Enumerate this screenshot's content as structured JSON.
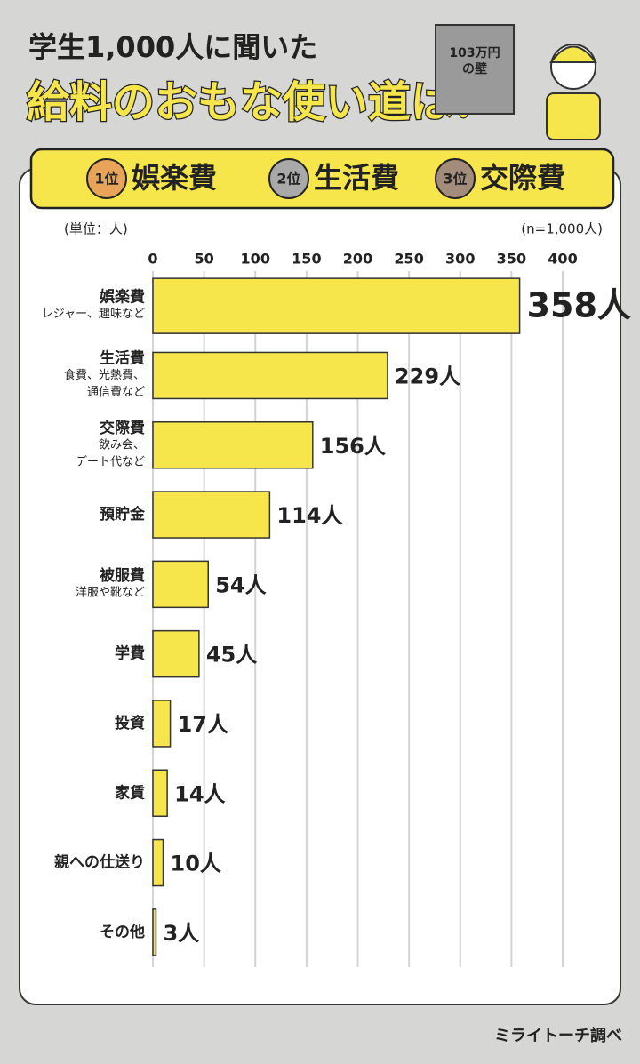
{
  "title": "学生1,000人に聞いた",
  "headline": "給料のおもな使い道は？",
  "book_label": [
    "103万円",
    "の壁"
  ],
  "ranking": [
    {
      "rank": "1位",
      "label": "娯楽費"
    },
    {
      "rank": "2位",
      "label": "生活費"
    },
    {
      "rank": "3位",
      "label": "交際費"
    }
  ],
  "source": "ミライトーチ調べ",
  "chart_data": {
    "type": "bar",
    "orientation": "horizontal",
    "unit_label": "(単位：人)",
    "sample_label": "(n=1,000人)",
    "categories": [
      "娯楽費",
      "生活費",
      "交際費",
      "預貯金",
      "被服費",
      "学費",
      "投資",
      "家賃",
      "親への仕送り",
      "その他"
    ],
    "sublabels": [
      [
        "レジャー、趣味など"
      ],
      [
        "食費、光熱費、",
        "通信費など"
      ],
      [
        "飲み会、",
        "デート代など"
      ],
      null,
      [
        "洋服や靴など"
      ],
      null,
      null,
      null,
      null,
      null
    ],
    "values": [
      358,
      229,
      156,
      114,
      54,
      45,
      17,
      14,
      10,
      3
    ],
    "value_labels": [
      "358人",
      "229人",
      "156人",
      "114人",
      "54人",
      "45人",
      "17人",
      "14人",
      "10人",
      "3人"
    ],
    "color": "#f6e64b",
    "xlim": [
      0,
      400
    ],
    "xticks": [
      0,
      50,
      100,
      150,
      200,
      250,
      300,
      350,
      400
    ],
    "grid": true
  }
}
